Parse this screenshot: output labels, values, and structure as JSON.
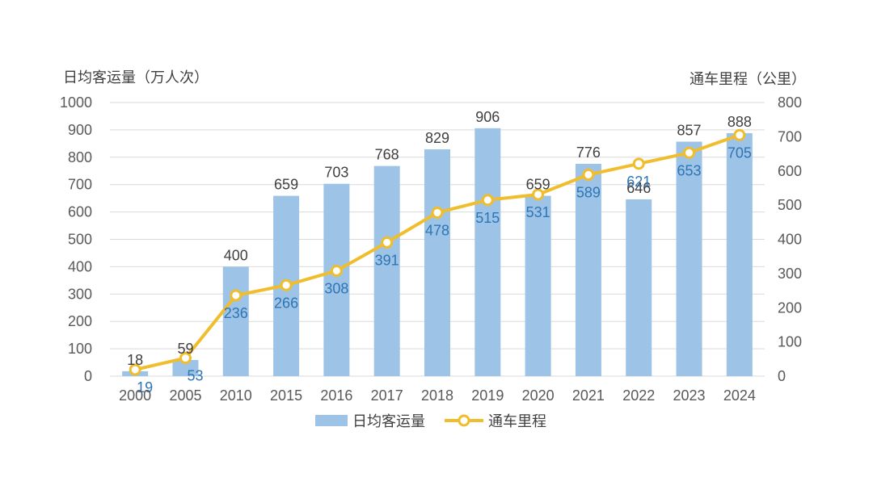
{
  "chart_data": {
    "type": "bar+line",
    "categories": [
      "2000",
      "2005",
      "2010",
      "2015",
      "2016",
      "2017",
      "2018",
      "2019",
      "2020",
      "2021",
      "2022",
      "2023",
      "2024"
    ],
    "series": [
      {
        "name": "日均客运量",
        "type": "bar",
        "axis": "left",
        "values": [
          18,
          59,
          400,
          659,
          703,
          768,
          829,
          906,
          659,
          776,
          646,
          857,
          888
        ]
      },
      {
        "name": "通车里程",
        "type": "line",
        "axis": "right",
        "values": [
          19,
          53,
          236,
          266,
          308,
          391,
          478,
          515,
          531,
          589,
          621,
          653,
          705
        ]
      }
    ],
    "ylabel_left": "日均客运量（万人次）",
    "ylabel_right": "通车里程（公里）",
    "ylim_left": [
      0,
      1000
    ],
    "ylim_right": [
      0,
      800
    ],
    "yticks_left": [
      0,
      100,
      200,
      300,
      400,
      500,
      600,
      700,
      800,
      900,
      1000
    ],
    "yticks_right": [
      0,
      100,
      200,
      300,
      400,
      500,
      600,
      700,
      800
    ],
    "legend_position": "bottom",
    "grid": true
  },
  "colors": {
    "bar": "#9DC3E6",
    "line": "#F0BE2D",
    "line_label": "#2E75B6",
    "grid": "#D9D9D9"
  }
}
